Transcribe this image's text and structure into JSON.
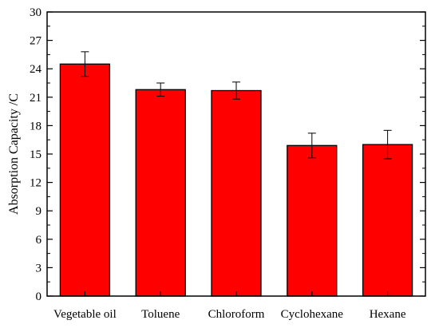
{
  "chart_data": {
    "type": "bar",
    "title": "",
    "xlabel": "",
    "ylabel": "Absorption Capacity /C",
    "categories": [
      "Vegetable oil",
      "Toluene",
      "Chloroform",
      "Cyclohexane",
      "Hexane"
    ],
    "values": [
      24.5,
      21.8,
      21.7,
      15.9,
      16.0
    ],
    "errors": [
      1.3,
      0.7,
      0.9,
      1.3,
      1.5
    ],
    "ylim": [
      0,
      30
    ],
    "yticks": [
      "0",
      "3",
      "6",
      "9",
      "12",
      "15",
      "18",
      "21",
      "24",
      "27",
      "30"
    ],
    "bar_color": "#ff0000",
    "bar_edge_color": "#000000",
    "grid": false,
    "legend": "none"
  }
}
